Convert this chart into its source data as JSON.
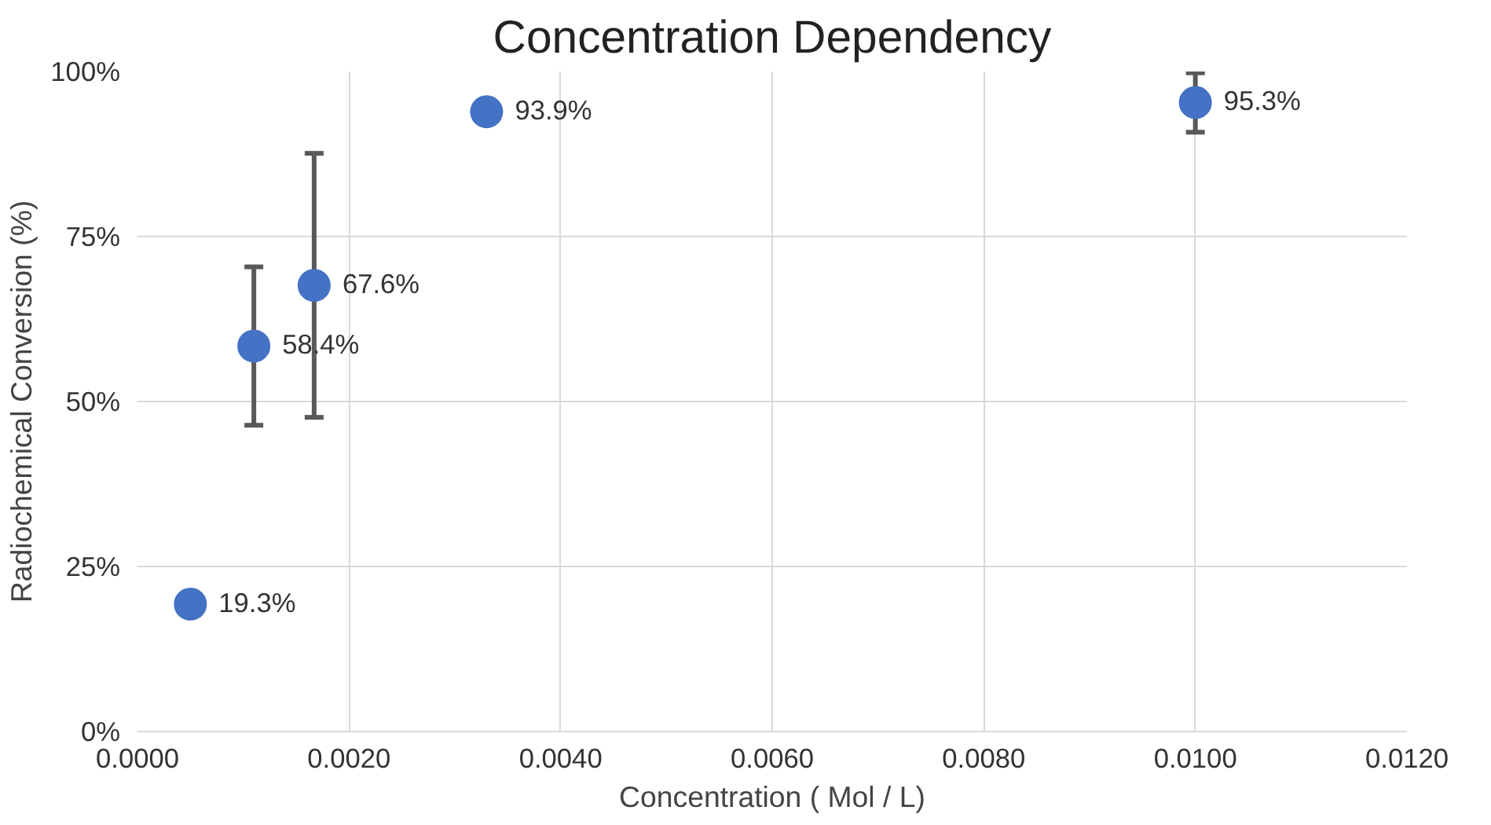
{
  "chart_data": {
    "type": "scatter",
    "title": "Concentration Dependency",
    "xlabel": "Concentration ( Mol / L)",
    "ylabel": "Radiochemical Conversion (%)",
    "x": [
      0.0005,
      0.0011,
      0.00167,
      0.0033,
      0.01
    ],
    "values": [
      19.3,
      58.4,
      67.6,
      93.9,
      95.3
    ],
    "errors": [
      null,
      12,
      20,
      null,
      4.5
    ],
    "value_labels": [
      "19.3%",
      "58.4%",
      "67.6%",
      "93.9%",
      "95.3%"
    ],
    "color": "#4472c4",
    "marker": "circle",
    "grid": true,
    "xlim": [
      0,
      0.012
    ],
    "xticks": [
      {
        "value": 0,
        "label": "0.0000"
      },
      {
        "value": 0.002,
        "label": "0.0020"
      },
      {
        "value": 0.004,
        "label": "0.0040"
      },
      {
        "value": 0.006,
        "label": "0.0060"
      },
      {
        "value": 0.008,
        "label": "0.0080"
      },
      {
        "value": 0.01,
        "label": "0.0100"
      },
      {
        "value": 0.012,
        "label": "0.0120"
      }
    ],
    "ylim": [
      0,
      100
    ],
    "yticks": [
      {
        "value": 0,
        "label": "0%"
      },
      {
        "value": 25,
        "label": "25%"
      },
      {
        "value": 50,
        "label": "50%"
      },
      {
        "value": 75,
        "label": "75%"
      },
      {
        "value": 100,
        "label": "100%"
      }
    ]
  }
}
